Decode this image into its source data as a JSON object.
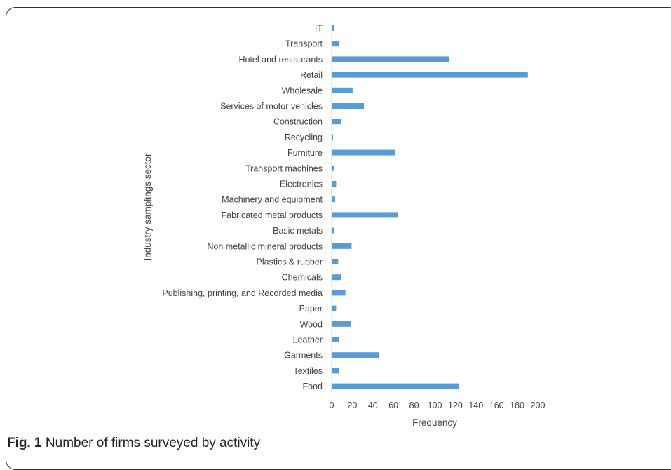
{
  "chart_data": {
    "type": "bar",
    "orientation": "horizontal",
    "categories": [
      "IT",
      "Transport",
      "Hotel and restaurants",
      "Retail",
      "Wholesale",
      "Services of motor vehicles",
      "Construction",
      "Recycling",
      "Furniture",
      "Transport machines",
      "Electronics",
      "Machinery and equipment",
      "Fabricated metal products",
      "Basic metals",
      "Non metallic mineral products",
      "Plastics & rubber",
      "Chemicals",
      "Publishing, printing, and Recorded media",
      "Paper",
      "Wood",
      "Leather",
      "Garments",
      "Textiles",
      "Food"
    ],
    "values": [
      2,
      7,
      114,
      190,
      20,
      31,
      9,
      1,
      61,
      2,
      4,
      3,
      64,
      2,
      19,
      6,
      9,
      13,
      4,
      18,
      7,
      46,
      7,
      123
    ],
    "xlabel": "Frequency",
    "ylabel": "Industry samplings sector",
    "xlim": [
      0,
      200
    ],
    "xticks": [
      0,
      20,
      40,
      60,
      80,
      100,
      120,
      140,
      160,
      180,
      200
    ],
    "grid": false,
    "bar_color": "#5b9bd5"
  },
  "caption": {
    "label": "Fig. 1",
    "text": "Number of firms surveyed by activity"
  }
}
